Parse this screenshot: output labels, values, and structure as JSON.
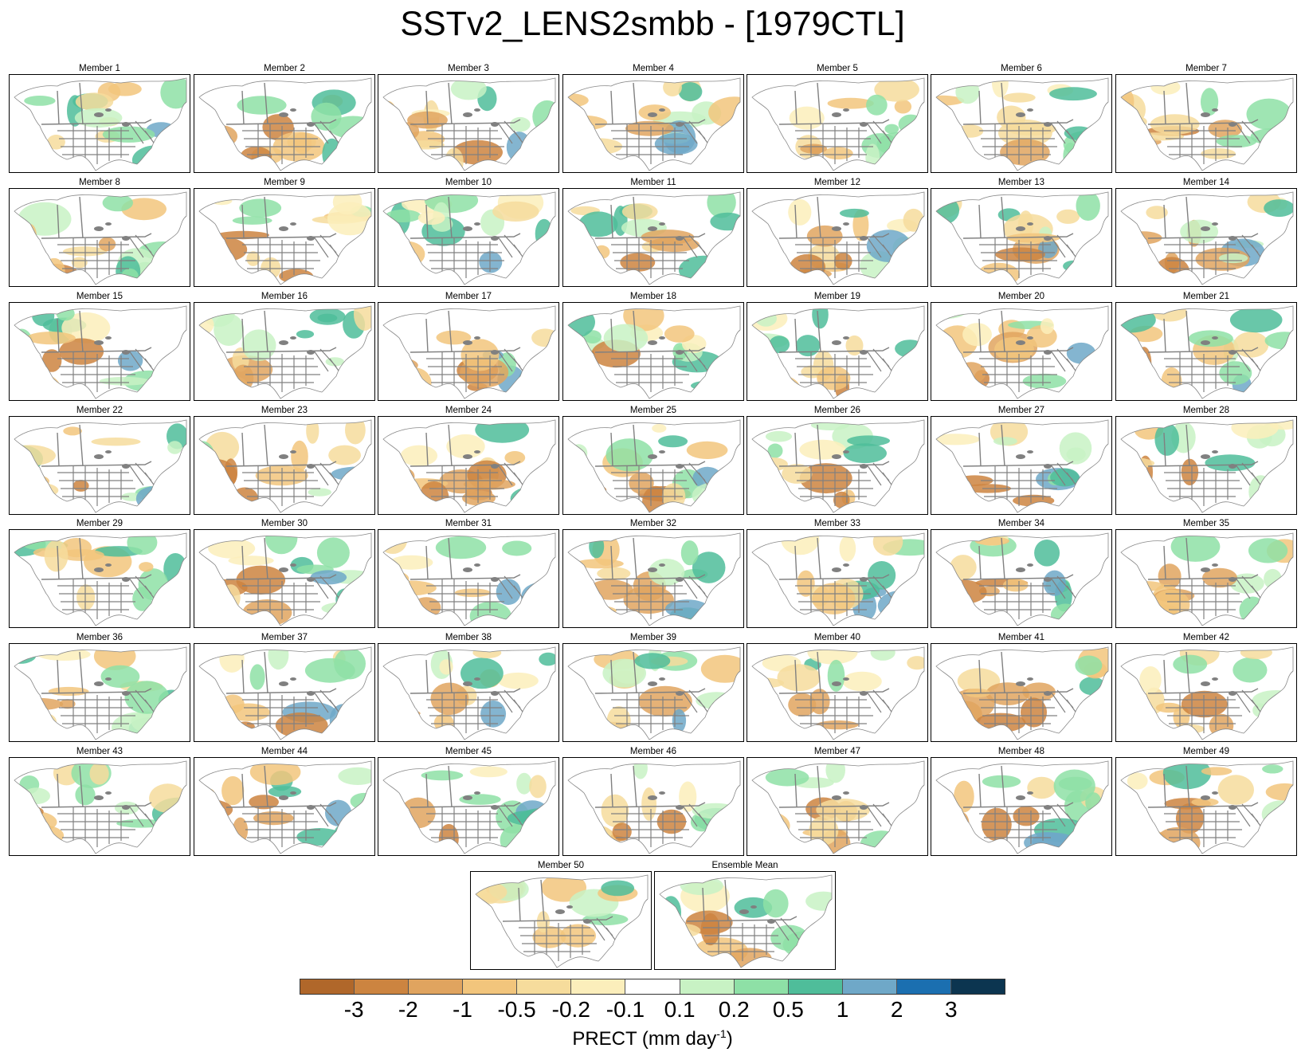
{
  "title": "SSTv2_LENS2smbb - [1979CTL]",
  "panels": [
    "Member 1",
    "Member 2",
    "Member 3",
    "Member 4",
    "Member 5",
    "Member 6",
    "Member 7",
    "Member 8",
    "Member 9",
    "Member 10",
    "Member 11",
    "Member 12",
    "Member 13",
    "Member 14",
    "Member 15",
    "Member 16",
    "Member 17",
    "Member 18",
    "Member 19",
    "Member 20",
    "Member 21",
    "Member 22",
    "Member 23",
    "Member 24",
    "Member 25",
    "Member 26",
    "Member 27",
    "Member 28",
    "Member 29",
    "Member 30",
    "Member 31",
    "Member 32",
    "Member 33",
    "Member 34",
    "Member 35",
    "Member 36",
    "Member 37",
    "Member 38",
    "Member 39",
    "Member 40",
    "Member 41",
    "Member 42",
    "Member 43",
    "Member 44",
    "Member 45",
    "Member 46",
    "Member 47",
    "Member 48",
    "Member 49",
    "Member 50",
    "Ensemble Mean"
  ],
  "colorbar": {
    "levels": [
      "-3",
      "-2",
      "-1",
      "-0.5",
      "-0.2",
      "-0.1",
      "0.1",
      "0.2",
      "0.5",
      "1",
      "2",
      "3"
    ],
    "colors": [
      "#b0672a",
      "#cc8440",
      "#e0a45f",
      "#f2c57c",
      "#f6dc9c",
      "#fbeebb",
      "#ffffff",
      "#c8f2c4",
      "#8ee0a6",
      "#4fbd9a",
      "#6fa8c8",
      "#1b6fb0",
      "#0c3550"
    ],
    "label_main": "PRECT (mm day",
    "label_sup": "-1",
    "label_end": ")"
  },
  "map_style": {
    "land": "#ffffff",
    "coast": "#888888",
    "borders": "#808080",
    "lakes": "#808080",
    "frame": "#000000"
  }
}
